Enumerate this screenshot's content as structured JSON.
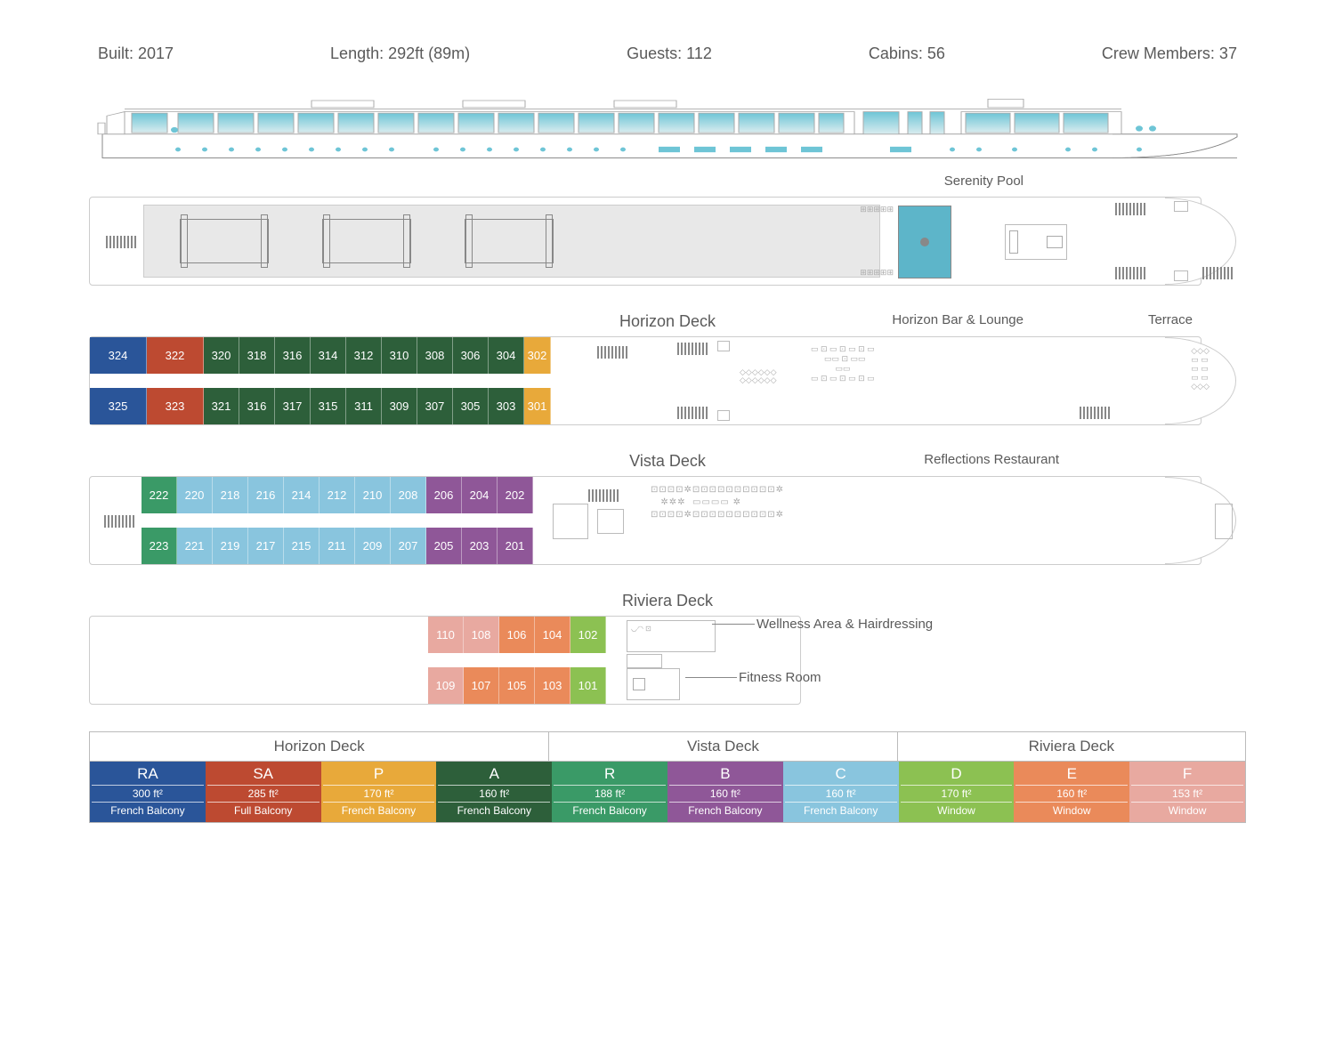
{
  "stats": {
    "built_label": "Built: 2017",
    "length_label": "Length: 292ft (89m)",
    "guests_label": "Guests: 112",
    "cabins_label": "Cabins: 56",
    "crew_label": "Crew Members: 37"
  },
  "colors": {
    "RA": "#2a5599",
    "SA": "#bd4a31",
    "P": "#e8a93a",
    "A": "#2d5f3a",
    "R": "#3a9a67",
    "B": "#8f5798",
    "C": "#89c5de",
    "D": "#8cc152",
    "E": "#ea8a5a",
    "F": "#e8a9a0",
    "hull": "#5a5a5a",
    "window_gradient_top": "#6ec5d6",
    "window_gradient_bottom": "#d9ecef",
    "pool": "#5db5c9",
    "text": "#5a5a5a",
    "border": "#cccccc"
  },
  "sun_deck": {
    "pool_label": "Serenity Pool"
  },
  "horizon": {
    "title": "Horizon Deck",
    "lounge_label": "Horizon Bar & Lounge",
    "terrace_label": "Terrace",
    "top_row": [
      {
        "num": "324",
        "cat": "RA",
        "wide": true
      },
      {
        "num": "322",
        "cat": "SA",
        "wide": true
      },
      {
        "num": "320",
        "cat": "A"
      },
      {
        "num": "318",
        "cat": "A"
      },
      {
        "num": "316",
        "cat": "A"
      },
      {
        "num": "314",
        "cat": "A"
      },
      {
        "num": "312",
        "cat": "A"
      },
      {
        "num": "310",
        "cat": "A"
      },
      {
        "num": "308",
        "cat": "A"
      },
      {
        "num": "306",
        "cat": "A"
      },
      {
        "num": "304",
        "cat": "A"
      },
      {
        "num": "302",
        "cat": "P",
        "narrow": true
      }
    ],
    "bottom_row": [
      {
        "num": "325",
        "cat": "RA",
        "wide": true
      },
      {
        "num": "323",
        "cat": "SA",
        "wide": true
      },
      {
        "num": "321",
        "cat": "A"
      },
      {
        "num": "316",
        "cat": "A"
      },
      {
        "num": "317",
        "cat": "A"
      },
      {
        "num": "315",
        "cat": "A"
      },
      {
        "num": "311",
        "cat": "A"
      },
      {
        "num": "309",
        "cat": "A"
      },
      {
        "num": "307",
        "cat": "A"
      },
      {
        "num": "305",
        "cat": "A"
      },
      {
        "num": "303",
        "cat": "A"
      },
      {
        "num": "301",
        "cat": "P",
        "narrow": true
      }
    ]
  },
  "vista": {
    "title": "Vista Deck",
    "restaurant_label": "Reflections Restaurant",
    "top_row": [
      {
        "num": "222",
        "cat": "R"
      },
      {
        "num": "220",
        "cat": "C"
      },
      {
        "num": "218",
        "cat": "C"
      },
      {
        "num": "216",
        "cat": "C"
      },
      {
        "num": "214",
        "cat": "C"
      },
      {
        "num": "212",
        "cat": "C"
      },
      {
        "num": "210",
        "cat": "C"
      },
      {
        "num": "208",
        "cat": "C"
      },
      {
        "num": "206",
        "cat": "B"
      },
      {
        "num": "204",
        "cat": "B"
      },
      {
        "num": "202",
        "cat": "B"
      }
    ],
    "bottom_row": [
      {
        "num": "223",
        "cat": "R"
      },
      {
        "num": "221",
        "cat": "C"
      },
      {
        "num": "219",
        "cat": "C"
      },
      {
        "num": "217",
        "cat": "C"
      },
      {
        "num": "215",
        "cat": "C"
      },
      {
        "num": "211",
        "cat": "C"
      },
      {
        "num": "209",
        "cat": "C"
      },
      {
        "num": "207",
        "cat": "C"
      },
      {
        "num": "205",
        "cat": "B"
      },
      {
        "num": "203",
        "cat": "B"
      },
      {
        "num": "201",
        "cat": "B"
      }
    ]
  },
  "riviera": {
    "title": "Riviera Deck",
    "wellness_label": "Wellness Area & Hairdressing",
    "fitness_label": "Fitness Room",
    "top_row": [
      {
        "num": "110",
        "cat": "F"
      },
      {
        "num": "108",
        "cat": "F"
      },
      {
        "num": "106",
        "cat": "E"
      },
      {
        "num": "104",
        "cat": "E"
      },
      {
        "num": "102",
        "cat": "D"
      }
    ],
    "bottom_row": [
      {
        "num": "109",
        "cat": "F"
      },
      {
        "num": "107",
        "cat": "E"
      },
      {
        "num": "105",
        "cat": "E"
      },
      {
        "num": "103",
        "cat": "E"
      },
      {
        "num": "101",
        "cat": "D"
      }
    ]
  },
  "legend": {
    "decks": [
      {
        "name": "Horizon Deck",
        "cats": [
          "RA",
          "SA",
          "P",
          "A"
        ]
      },
      {
        "name": "Vista Deck",
        "cats": [
          "R",
          "B",
          "C"
        ]
      },
      {
        "name": "Riviera Deck",
        "cats": [
          "D",
          "E",
          "F"
        ]
      }
    ],
    "categories": {
      "RA": {
        "code": "RA",
        "size": "300 ft²",
        "balcony": "French Balcony"
      },
      "SA": {
        "code": "SA",
        "size": "285 ft²",
        "balcony": "Full Balcony"
      },
      "P": {
        "code": "P",
        "size": "170 ft²",
        "balcony": "French Balcony"
      },
      "A": {
        "code": "A",
        "size": "160 ft²",
        "balcony": "French Balcony"
      },
      "R": {
        "code": "R",
        "size": "188 ft²",
        "balcony": "French Balcony"
      },
      "B": {
        "code": "B",
        "size": "160 ft²",
        "balcony": "French Balcony"
      },
      "C": {
        "code": "C",
        "size": "160 ft²",
        "balcony": "French Balcony"
      },
      "D": {
        "code": "D",
        "size": "170 ft²",
        "balcony": "Window"
      },
      "E": {
        "code": "E",
        "size": "160 ft²",
        "balcony": "Window"
      },
      "F": {
        "code": "F",
        "size": "153 ft²",
        "balcony": "Window"
      }
    }
  }
}
